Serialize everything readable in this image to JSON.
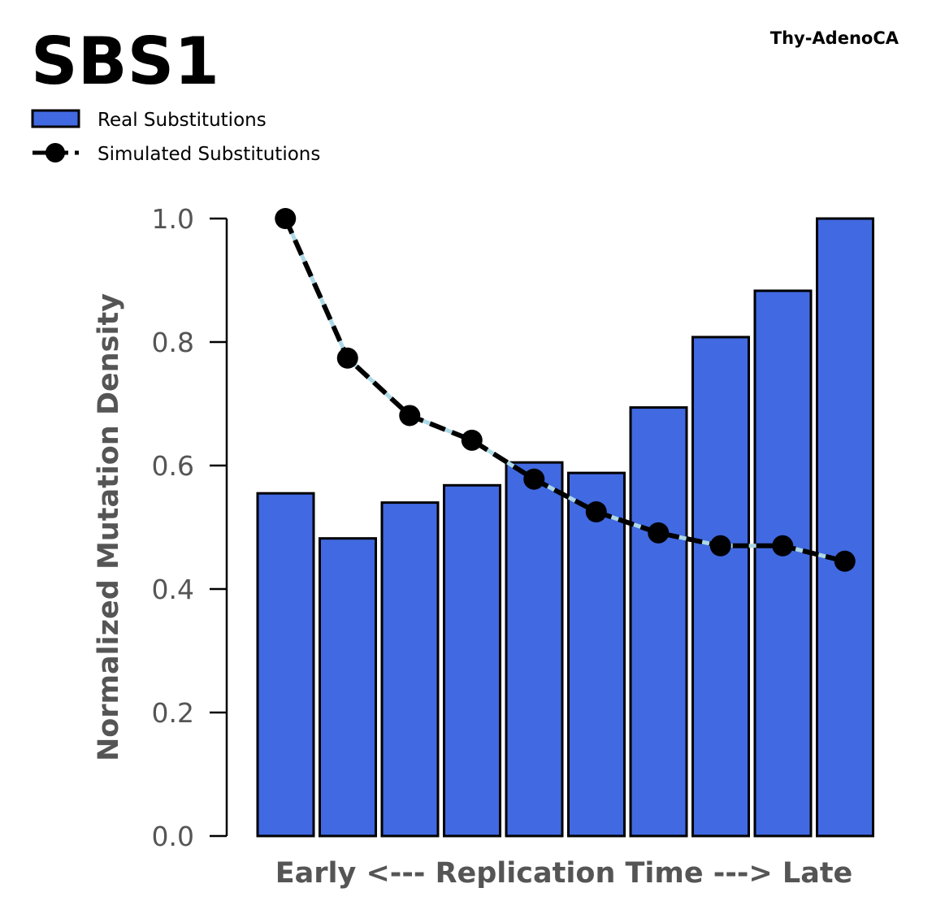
{
  "chart_data": {
    "type": "bar",
    "title": "SBS1",
    "subtitle": "Thy-AdenoCA",
    "xlabel": "Early <--- Replication Time ---> Late",
    "ylabel": "Normalized Mutation Density",
    "ylim": [
      0,
      1.0
    ],
    "yticks": [
      "0.0",
      "0.2",
      "0.4",
      "0.6",
      "0.8",
      "1.0"
    ],
    "legend_position": "top-left",
    "grid": false,
    "series": [
      {
        "name": "Real Substitutions",
        "type": "bar",
        "color": "#4169E1",
        "values": [
          0.555,
          0.482,
          0.54,
          0.568,
          0.605,
          0.588,
          0.694,
          0.808,
          0.883,
          1.0
        ]
      },
      {
        "name": "Simulated Substitutions",
        "type": "line",
        "color": "#000000",
        "secondary_color": "#ADD8E6",
        "values": [
          1.0,
          0.774,
          0.681,
          0.641,
          0.578,
          0.525,
          0.491,
          0.47,
          0.47,
          0.445
        ]
      }
    ]
  }
}
